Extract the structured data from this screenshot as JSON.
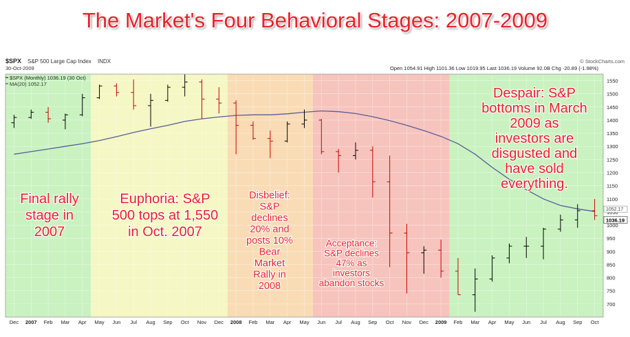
{
  "title": "The Market's Four Behavioral Stages: 2007-2009",
  "header": {
    "symbol": "$SPX",
    "name": "S&P 500 Large Cap Index",
    "exchange": "INDX",
    "date": "30-Oct-2009",
    "source": "© StockCharts.com",
    "ohlc": "Open 1054.91  High 1101.36  Low 1019.95  Last 1036.19  Volume 92.0B  Chg -20.89 (-1.98%)",
    "legend1": "$SPX (Monthly) 1036.19 (30 Oct)",
    "legend2": "MA(20) 1052.17",
    "price_label_last": "1036.19",
    "price_label_ma": "1052.17"
  },
  "colors": {
    "title": "#e8202a",
    "stage_green": "#c9f2c0",
    "stage_yellow": "#f5f7c4",
    "stage_orange": "#f9dcb5",
    "stage_red": "#f6c4bd",
    "bar_up": "#000000",
    "bar_down": "#cc0000",
    "ma_line": "#5a5a9a",
    "annotation": "#e8202a"
  },
  "annotations": [
    {
      "id": "final-rally",
      "lines": [
        "Final rally",
        "stage in",
        "2007"
      ]
    },
    {
      "id": "euphoria",
      "lines": [
        "Euphoria: S&P",
        "500 tops at 1,550",
        "in Oct. 2007"
      ]
    },
    {
      "id": "disbelief",
      "lines": [
        "Disbelief:",
        "S&P",
        "declines",
        "20% and",
        "posts 10%",
        "Bear",
        "Market",
        "Rally in",
        "2008"
      ]
    },
    {
      "id": "acceptance",
      "lines": [
        "Acceptance:",
        "S&P declines",
        "47% as",
        "investors",
        "abandon stocks"
      ]
    },
    {
      "id": "despair",
      "lines": [
        "Despair: S&P",
        "bottoms in March",
        "2009 as",
        "investors are",
        "disgusted and",
        "have sold",
        "everything."
      ]
    }
  ],
  "chart_data": {
    "type": "bar",
    "subtype": "ohlc",
    "title": "The Market's Four Behavioral Stages: 2007-2009",
    "series_name": "$SPX (Monthly)",
    "ylim": [
      650,
      1575
    ],
    "y_ticks": [
      700,
      750,
      800,
      850,
      900,
      950,
      1000,
      1050,
      1100,
      1150,
      1200,
      1250,
      1300,
      1350,
      1400,
      1450,
      1500,
      1550
    ],
    "x_labels": [
      "Dec",
      "2007",
      "Feb",
      "Mar",
      "Apr",
      "May",
      "Jun",
      "Jul",
      "Aug",
      "Sep",
      "Oct",
      "Nov",
      "Dec",
      "2008",
      "Feb",
      "Mar",
      "Apr",
      "May",
      "Jun",
      "Jul",
      "Aug",
      "Sep",
      "Oct",
      "Nov",
      "Dec",
      "2009",
      "Feb",
      "Mar",
      "Apr",
      "May",
      "Jun",
      "Jul",
      "Aug",
      "Sep",
      "Oct"
    ],
    "x_bold": [
      "2007",
      "2008",
      "2009"
    ],
    "bars": [
      {
        "o": 1390,
        "h": 1420,
        "l": 1370,
        "c": 1410
      },
      {
        "o": 1410,
        "h": 1440,
        "l": 1405,
        "c": 1430
      },
      {
        "o": 1430,
        "h": 1450,
        "l": 1390,
        "c": 1405
      },
      {
        "o": 1400,
        "h": 1425,
        "l": 1365,
        "c": 1420
      },
      {
        "o": 1420,
        "h": 1500,
        "l": 1415,
        "c": 1485
      },
      {
        "o": 1485,
        "h": 1535,
        "l": 1480,
        "c": 1530
      },
      {
        "o": 1530,
        "h": 1540,
        "l": 1490,
        "c": 1505
      },
      {
        "o": 1505,
        "h": 1555,
        "l": 1440,
        "c": 1455
      },
      {
        "o": 1455,
        "h": 1500,
        "l": 1375,
        "c": 1475
      },
      {
        "o": 1475,
        "h": 1535,
        "l": 1470,
        "c": 1525
      },
      {
        "o": 1525,
        "h": 1575,
        "l": 1490,
        "c": 1545
      },
      {
        "o": 1545,
        "h": 1555,
        "l": 1405,
        "c": 1480
      },
      {
        "o": 1480,
        "h": 1525,
        "l": 1425,
        "c": 1465
      },
      {
        "o": 1465,
        "h": 1475,
        "l": 1270,
        "c": 1380
      },
      {
        "o": 1380,
        "h": 1395,
        "l": 1325,
        "c": 1330
      },
      {
        "o": 1330,
        "h": 1360,
        "l": 1255,
        "c": 1320
      },
      {
        "o": 1320,
        "h": 1395,
        "l": 1315,
        "c": 1385
      },
      {
        "o": 1385,
        "h": 1440,
        "l": 1370,
        "c": 1400
      },
      {
        "o": 1400,
        "h": 1405,
        "l": 1270,
        "c": 1280
      },
      {
        "o": 1280,
        "h": 1290,
        "l": 1200,
        "c": 1265
      },
      {
        "o": 1265,
        "h": 1315,
        "l": 1250,
        "c": 1285
      },
      {
        "o": 1285,
        "h": 1300,
        "l": 1105,
        "c": 1165
      },
      {
        "o": 1165,
        "h": 1265,
        "l": 840,
        "c": 970
      },
      {
        "o": 970,
        "h": 1005,
        "l": 740,
        "c": 895
      },
      {
        "o": 895,
        "h": 920,
        "l": 815,
        "c": 905
      },
      {
        "o": 905,
        "h": 945,
        "l": 800,
        "c": 825
      },
      {
        "o": 825,
        "h": 875,
        "l": 735,
        "c": 735
      },
      {
        "o": 735,
        "h": 835,
        "l": 670,
        "c": 795
      },
      {
        "o": 795,
        "h": 885,
        "l": 785,
        "c": 875
      },
      {
        "o": 875,
        "h": 930,
        "l": 855,
        "c": 920
      },
      {
        "o": 920,
        "h": 955,
        "l": 875,
        "c": 920
      },
      {
        "o": 920,
        "h": 990,
        "l": 870,
        "c": 985
      },
      {
        "o": 985,
        "h": 1040,
        "l": 975,
        "c": 1020
      },
      {
        "o": 1020,
        "h": 1080,
        "l": 990,
        "c": 1055
      },
      {
        "o": 1055,
        "h": 1100,
        "l": 1020,
        "c": 1036
      }
    ],
    "ma20": [
      1270,
      1280,
      1290,
      1300,
      1310,
      1322,
      1337,
      1353,
      1367,
      1380,
      1395,
      1405,
      1412,
      1418,
      1420,
      1420,
      1424,
      1430,
      1435,
      1432,
      1425,
      1413,
      1398,
      1380,
      1360,
      1338,
      1310,
      1270,
      1220,
      1175,
      1135,
      1100,
      1075,
      1062,
      1052
    ]
  }
}
